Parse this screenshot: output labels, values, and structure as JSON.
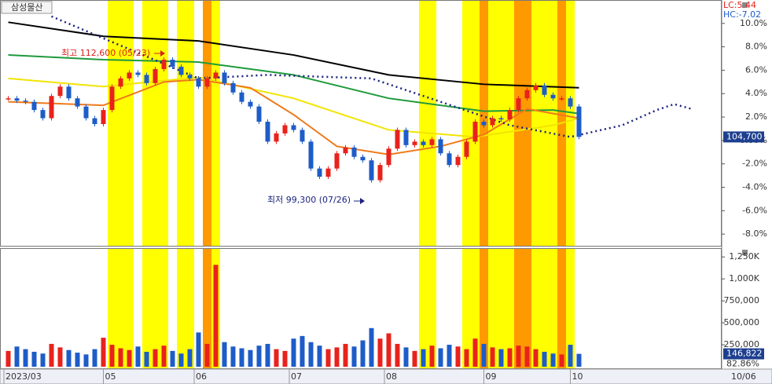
{
  "title": "삼성물산",
  "lc_label": "LC:5.44",
  "hc_label": "HC:-7.02",
  "chart_data": {
    "type": "candlestick",
    "xlim": [
      -0.5,
      82.5
    ],
    "xticks": [
      {
        "value": -0.5,
        "label": "2023/03"
      },
      {
        "value": 11,
        "label": "05"
      },
      {
        "value": 21.5,
        "label": "06"
      },
      {
        "value": 32.5,
        "label": "07"
      },
      {
        "value": 43.5,
        "label": "08"
      },
      {
        "value": 55,
        "label": "09"
      },
      {
        "value": 65,
        "label": "10"
      }
    ],
    "end_date_label": "10/06",
    "x": [
      0,
      1,
      2,
      3,
      4,
      5,
      6,
      7,
      8,
      9,
      10,
      11,
      12,
      13,
      14,
      15,
      16,
      17,
      18,
      19,
      20,
      21,
      22,
      23,
      24,
      25,
      26,
      27,
      28,
      29,
      30,
      31,
      32,
      33,
      34,
      35,
      36,
      37,
      38,
      39,
      40,
      41,
      42,
      43,
      44,
      45,
      46,
      47,
      48,
      49,
      50,
      51,
      52,
      53,
      54,
      55,
      56,
      57,
      58,
      59,
      60,
      61,
      62,
      63,
      64,
      65,
      66
    ],
    "up_color": "#e8221c",
    "down_color": "#1d5cc9",
    "close": [
      3.6,
      3.4,
      3.3,
      2.6,
      1.9,
      3.8,
      4.6,
      3.6,
      2.9,
      1.9,
      1.4,
      2.6,
      4.6,
      5.3,
      5.8,
      5.6,
      4.9,
      6.1,
      6.9,
      6.3,
      5.6,
      5.3,
      4.6,
      5.3,
      5.8,
      4.9,
      4.1,
      3.3,
      2.9,
      1.6,
      -0.1,
      0.6,
      1.3,
      0.9,
      -0.1,
      -2.4,
      -3.1,
      -2.4,
      -1.1,
      -0.6,
      -1.4,
      -1.7,
      -3.4,
      -2.1,
      -0.7,
      0.9,
      -0.4,
      -0.1,
      -0.4,
      0.1,
      -1.1,
      -2.1,
      -1.4,
      -0.1,
      1.6,
      1.3,
      1.9,
      1.8,
      2.6,
      3.6,
      4.3,
      4.7,
      3.9,
      3.6,
      3.6,
      2.9,
      0.3
    ],
    "ylim": [
      -9,
      12
    ],
    "yticks": [
      {
        "value": 10,
        "label": "10.0%"
      },
      {
        "value": 8,
        "label": "8.0%"
      },
      {
        "value": 6,
        "label": "6.0%"
      },
      {
        "value": 4,
        "label": "4.0%"
      },
      {
        "value": 2,
        "label": "2.0%"
      },
      {
        "value": 0,
        "label": "0.00%"
      },
      {
        "value": -2,
        "label": "-2.0%"
      },
      {
        "value": -4,
        "label": "-4.0%"
      },
      {
        "value": -6,
        "label": "-6.0%"
      },
      {
        "value": -8,
        "label": "-8.0%"
      }
    ],
    "current_price_label": "104,700",
    "high_label": "최고 112,600 (05/23)",
    "low_label": "최저 99,300 (07/26)",
    "lines": [
      {
        "color": "#000000",
        "x": [
          0,
          11,
          22,
          33,
          44,
          55,
          66
        ],
        "values": [
          10.1,
          8.9,
          8.5,
          7.3,
          5.6,
          4.8,
          4.5
        ]
      },
      {
        "color": "#1e9a3c",
        "x": [
          0,
          11,
          22,
          33,
          44,
          55,
          63,
          66
        ],
        "values": [
          7.3,
          6.9,
          6.7,
          5.6,
          3.6,
          2.5,
          2.6,
          2.3
        ]
      },
      {
        "color": "#f2e400",
        "x": [
          0,
          11,
          22,
          33,
          44,
          54,
          63,
          66
        ],
        "values": [
          5.3,
          4.6,
          5.4,
          3.6,
          0.9,
          0.3,
          1.3,
          1.9
        ]
      },
      {
        "color": "#ee7a1a",
        "x": [
          0,
          11,
          18,
          22,
          28,
          33,
          38,
          44,
          50,
          55,
          60,
          66
        ],
        "values": [
          3.3,
          3.0,
          5.0,
          5.2,
          4.5,
          2.2,
          -0.5,
          -1.2,
          -0.5,
          0.5,
          2.7,
          1.9
        ]
      },
      {
        "color": "#1a237e",
        "dash": true,
        "x": [
          5,
          22,
          30,
          42,
          50,
          58,
          65,
          71,
          75,
          77,
          79
        ],
        "values": [
          10.6,
          5.3,
          5.6,
          5.3,
          3.3,
          1.3,
          0.3,
          1.3,
          2.6,
          3.1,
          2.7
        ]
      }
    ],
    "bands": [
      {
        "from": 12,
        "to": 12,
        "color": "#ffff00"
      },
      {
        "from": 13,
        "to": 13,
        "color": "#ffff00"
      },
      {
        "from": 14,
        "to": 14,
        "color": "#ffff00"
      },
      {
        "from": 16,
        "to": 18,
        "color": "#ffff00"
      },
      {
        "from": 20,
        "to": 21,
        "color": "#ffff00"
      },
      {
        "from": 23,
        "to": 24,
        "color": "#ffff00"
      },
      {
        "from": 23,
        "to": 23,
        "color": "#ff9900"
      },
      {
        "from": 48,
        "to": 49,
        "color": "#ffff00"
      },
      {
        "from": 53,
        "to": 57,
        "color": "#ffff00"
      },
      {
        "from": 55,
        "to": 55,
        "color": "#ff9900"
      },
      {
        "from": 58,
        "to": 65,
        "color": "#ffff00"
      },
      {
        "from": 59,
        "to": 60,
        "color": "#ff9900"
      },
      {
        "from": 64,
        "to": 64,
        "color": "#ff9900"
      }
    ],
    "volume": {
      "values": [
        180000,
        230000,
        200000,
        170000,
        150000,
        260000,
        220000,
        190000,
        160000,
        140000,
        200000,
        330000,
        250000,
        210000,
        190000,
        230000,
        170000,
        200000,
        240000,
        180000,
        150000,
        200000,
        390000,
        260000,
        1160000,
        280000,
        230000,
        210000,
        190000,
        240000,
        260000,
        200000,
        180000,
        320000,
        350000,
        280000,
        240000,
        200000,
        220000,
        260000,
        230000,
        300000,
        440000,
        320000,
        380000,
        260000,
        220000,
        180000,
        200000,
        240000,
        210000,
        250000,
        230000,
        200000,
        320000,
        260000,
        220000,
        200000,
        210000,
        240000,
        230000,
        200000,
        170000,
        150000,
        140000,
        250000,
        146822
      ],
      "ylim": [
        0,
        1350000
      ],
      "yticks": [
        {
          "value": 1250000,
          "label": "1,250K"
        },
        {
          "value": 1000000,
          "label": "1,000K"
        },
        {
          "value": 750000,
          "label": "750,000"
        },
        {
          "value": 500000,
          "label": "500,000"
        },
        {
          "value": 250000,
          "label": "250,000"
        }
      ],
      "current_label": "146,822",
      "ratio_label": "82.86%"
    }
  }
}
